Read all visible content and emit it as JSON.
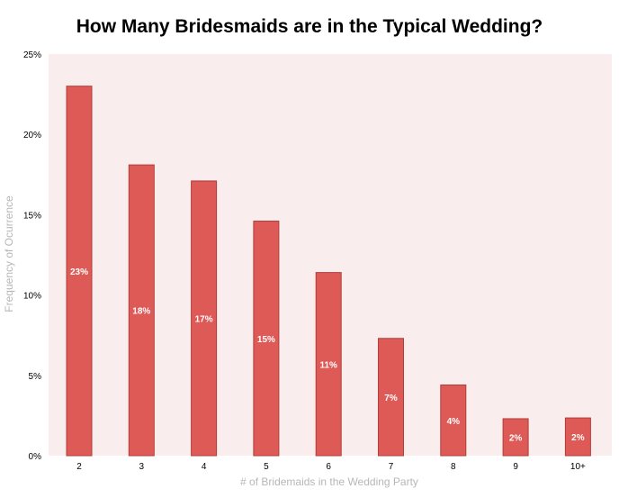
{
  "chart_data": {
    "type": "bar",
    "title": "How Many Bridesmaids are in the Typical Wedding?",
    "xlabel": "# of Bridemaids in the Wedding Party",
    "ylabel": "Frequency of Ocurrence",
    "categories": [
      "2",
      "3",
      "4",
      "5",
      "6",
      "7",
      "8",
      "9",
      "10+"
    ],
    "values": [
      23,
      18.1,
      17.1,
      14.6,
      11.4,
      7.3,
      4.4,
      2.3,
      2.35
    ],
    "data_labels": [
      "23%",
      "18%",
      "17%",
      "15%",
      "11%",
      "7%",
      "4%",
      "2%",
      "2%"
    ],
    "ylim": [
      0,
      25
    ],
    "yticks": [
      0,
      5,
      10,
      15,
      20,
      25
    ],
    "ytick_labels": [
      "0%",
      "5%",
      "10%",
      "15%",
      "20%",
      "25%"
    ],
    "grid": false,
    "legend": "none",
    "colors": {
      "bar": "#de5a57",
      "bar_border": "#b23c3a",
      "plot_background": "#f9eded",
      "data_label": "#ffffff",
      "axis_title": "#b7b7b7"
    }
  }
}
